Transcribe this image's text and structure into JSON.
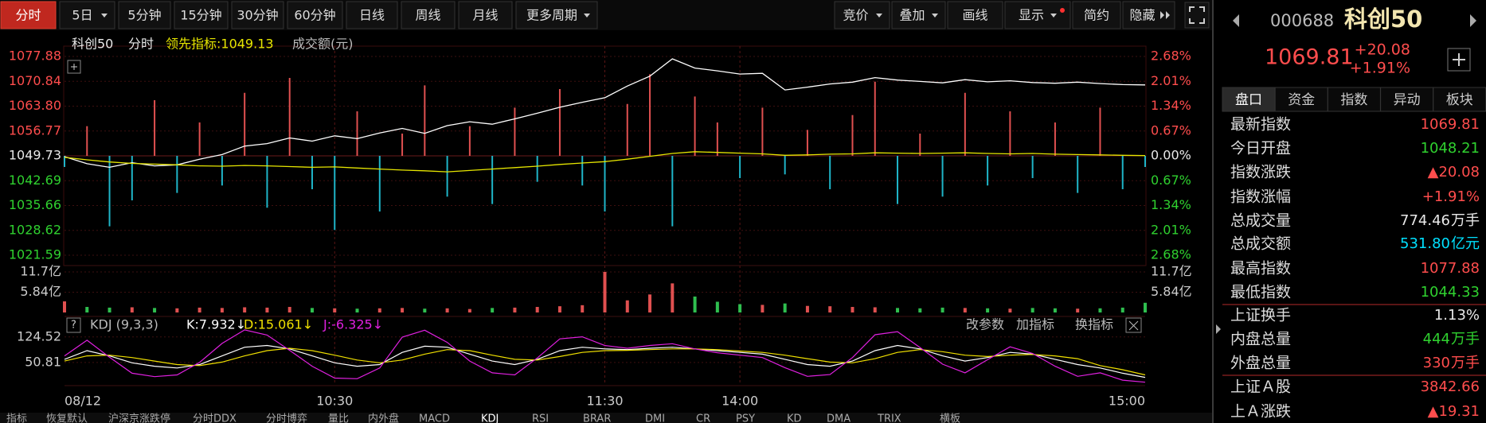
{
  "toolbar": {
    "left": [
      "分时",
      "5日",
      "5分钟",
      "15分钟",
      "30分钟",
      "60分钟",
      "日线",
      "周线",
      "月线",
      "更多周期"
    ],
    "right": [
      "竞价",
      "叠加",
      "画线",
      "显示",
      "简约",
      "隐藏"
    ]
  },
  "chart_data": {
    "type": "line",
    "title": "科创50",
    "mode": "分时",
    "indicator_label": "领先指标:1049.13",
    "volume_label": "成交额(元)",
    "up_color": "#ff4d4d",
    "down_color": "#2fd12f",
    "flat_color": "#e8e8e8",
    "x": [
      0,
      5,
      10,
      15,
      20,
      25,
      30,
      35,
      40,
      45,
      50,
      55,
      60,
      65,
      70,
      75,
      80,
      85,
      90,
      95,
      100,
      105,
      110,
      115,
      120,
      125,
      130,
      135,
      140,
      145,
      150,
      155,
      160,
      165,
      170,
      175,
      180,
      185,
      190,
      195,
      200,
      205,
      210,
      215,
      220,
      225,
      230,
      235,
      240
    ],
    "xlim": [
      0,
      240
    ],
    "xticks": [
      {
        "value": 0,
        "label": "08/12"
      },
      {
        "value": 60,
        "label": "10:30"
      },
      {
        "value": 120,
        "label": "11:30"
      },
      {
        "value": 150,
        "label": "14:00"
      },
      {
        "value": 240,
        "label": "15:00"
      }
    ],
    "ylim": [
      1021.59,
      1077.88
    ],
    "yticks": [
      1077.88,
      1070.84,
      {
        "value": 1063.8,
        "label": "1063.80"
      },
      1056.77,
      1049.73,
      1042.69,
      1035.66,
      1028.62,
      1021.59
    ],
    "y2lim": [
      -2.68,
      2.68
    ],
    "y2ticks": [
      {
        "value": 2.68,
        "label": "2.68%"
      },
      {
        "value": 2.01,
        "label": "2.01%"
      },
      {
        "value": 1.34,
        "label": "1.34%"
      },
      {
        "value": 0.67,
        "label": "0.67%"
      },
      {
        "value": 0,
        "label": "0.00%"
      },
      {
        "value": -0.67,
        "label": "0.67%"
      },
      {
        "value": -1.34,
        "label": "1.34%"
      },
      {
        "value": -2.01,
        "label": "2.01%"
      },
      {
        "value": -2.68,
        "label": "2.68%"
      }
    ],
    "series": [
      {
        "name": "科创50",
        "color": "#ffffff",
        "values": [
          1049.5,
          1047.5,
          1046.5,
          1047.8,
          1046.9,
          1047.2,
          1048.8,
          1050.1,
          1052.5,
          1053.2,
          1054.8,
          1053.9,
          1055.4,
          1054.6,
          1056.2,
          1057.5,
          1056.1,
          1058.3,
          1059.4,
          1058.7,
          1060.2,
          1061.8,
          1063.5,
          1064.9,
          1066.2,
          1069.5,
          1072.3,
          1077.2,
          1074.6,
          1073.8,
          1072.9,
          1073.1,
          1068.4,
          1069.2,
          1070.1,
          1070.6,
          1071.9,
          1071.2,
          1070.8,
          1070.4,
          1071.3,
          1070.7,
          1071.0,
          1070.5,
          1070.3,
          1070.6,
          1070.2,
          1069.9,
          1069.81
        ]
      },
      {
        "color": "#e6e600",
        "values": [
          1049.3,
          1048.6,
          1048.0,
          1047.6,
          1047.4,
          1047.2,
          1046.9,
          1046.8,
          1047.0,
          1046.9,
          1046.7,
          1046.5,
          1046.6,
          1046.3,
          1046.0,
          1045.7,
          1045.5,
          1045.2,
          1045.6,
          1046.0,
          1046.4,
          1046.8,
          1047.3,
          1047.7,
          1048.1,
          1048.8,
          1049.6,
          1050.4,
          1050.9,
          1050.7,
          1050.5,
          1050.3,
          1049.9,
          1050.0,
          1050.2,
          1050.3,
          1050.6,
          1050.5,
          1050.4,
          1050.5,
          1050.6,
          1050.4,
          1050.3,
          1050.4,
          1050.2,
          1050.1,
          1050.0,
          1049.9,
          1049.8
        ]
      }
    ],
    "breadth": {
      "axis": "y2",
      "up_color": "#e05050",
      "down_color": "#1fb5c8",
      "values": [
        -0.3,
        0.8,
        -1.9,
        -1.2,
        1.5,
        -1.0,
        0.9,
        -0.8,
        1.7,
        -1.4,
        2.1,
        -0.9,
        -2.0,
        1.2,
        -1.5,
        0.6,
        1.9,
        -1.1,
        0.8,
        -1.3,
        1.3,
        -0.7,
        1.8,
        -0.8,
        -1.5,
        1.4,
        2.2,
        -1.9,
        1.6,
        0.9,
        -0.6,
        1.3,
        -0.5,
        0.7,
        -0.9,
        1.1,
        2.0,
        -1.3,
        0.6,
        -1.1,
        1.7,
        -0.8,
        1.2,
        -0.6,
        0.9,
        -1.0,
        1.3,
        -0.9,
        -0.3
      ]
    },
    "volume": {
      "ylim": [
        0,
        11.7
      ],
      "yticks": [
        {
          "value": 11.7,
          "label": "11.7亿"
        },
        {
          "value": 5.84,
          "label": "5.84亿"
        }
      ],
      "up_color": "#e05050",
      "down_color": "#2fbf4f",
      "values": [
        3.2,
        1.6,
        1.4,
        1.5,
        1.3,
        1.2,
        1.4,
        1.3,
        1.5,
        1.4,
        1.6,
        1.3,
        1.2,
        1.1,
        1.2,
        1.3,
        1.1,
        1.2,
        1.0,
        1.3,
        1.4,
        1.6,
        1.8,
        2.1,
        11.7,
        3.5,
        5.2,
        8.4,
        4.6,
        3.1,
        2.4,
        2.2,
        2.6,
        1.9,
        1.8,
        1.6,
        1.5,
        1.3,
        1.2,
        1.4,
        1.3,
        1.2,
        1.1,
        1.3,
        1.2,
        1.1,
        1.2,
        1.4,
        2.8
      ]
    },
    "kdj": {
      "help": "?",
      "header": "KDJ (9,3,3)",
      "ylim": [
        -9,
        147
      ],
      "yticks": [
        124.52,
        50.81
      ],
      "buttons": [
        "改参数",
        "加指标",
        "换指标"
      ],
      "series": [
        {
          "name": "K:7.932↓",
          "color": "#ffffff",
          "values": [
            60,
            85,
            70,
            50,
            40,
            35,
            45,
            70,
            95,
            100,
            90,
            70,
            50,
            40,
            45,
            80,
            98,
            95,
            75,
            55,
            45,
            60,
            85,
            95,
            90,
            88,
            92,
            95,
            90,
            85,
            80,
            75,
            60,
            45,
            40,
            55,
            85,
            100,
            90,
            70,
            55,
            65,
            80,
            75,
            60,
            45,
            35,
            20,
            8
          ]
        },
        {
          "name": "D:15.061↓",
          "color": "#f0e000",
          "values": [
            55,
            70,
            72,
            65,
            55,
            45,
            42,
            52,
            70,
            85,
            92,
            85,
            72,
            58,
            50,
            58,
            75,
            88,
            85,
            72,
            60,
            58,
            68,
            80,
            85,
            86,
            88,
            90,
            90,
            88,
            84,
            80,
            72,
            62,
            52,
            50,
            62,
            80,
            88,
            82,
            72,
            68,
            72,
            74,
            70,
            62,
            42,
            30,
            15
          ]
        },
        {
          "name": "J:-6.325↓",
          "color": "#e020e0",
          "values": [
            70,
            115,
            66,
            20,
            10,
            15,
            51,
            106,
            145,
            130,
            86,
            40,
            6,
            4,
            35,
            124,
            144,
            109,
            55,
            21,
            15,
            64,
            119,
            125,
            100,
            92,
            100,
            105,
            90,
            79,
            72,
            65,
            36,
            11,
            16,
            65,
            131,
            140,
            94,
            46,
            21,
            59,
            96,
            77,
            40,
            11,
            21,
            0,
            -6
          ]
        }
      ]
    }
  },
  "panel": {
    "code": "000688",
    "name": "科创50",
    "price": "1069.81",
    "change": "+20.08",
    "change_pct": "+1.91%",
    "tabs": [
      "盘口",
      "资金",
      "指数",
      "异动",
      "板块"
    ],
    "sections": [
      [
        {
          "label": "最新指数",
          "value": "1069.81",
          "color": "#ff4d4d"
        },
        {
          "label": "今日开盘",
          "value": "1048.21",
          "color": "#2fd12f"
        },
        {
          "label": "指数涨跌",
          "value": "▲20.08",
          "color": "#ff4d4d"
        },
        {
          "label": "指数涨幅",
          "value": "+1.91%",
          "color": "#ff4d4d"
        },
        {
          "label": "总成交量",
          "value": "774.46",
          "unit": "万手",
          "color": "#e8e8e8"
        },
        {
          "label": "总成交额",
          "value": "531.80",
          "unit": "亿元",
          "color": "#00e0ff"
        },
        {
          "label": "最高指数",
          "value": "1077.88",
          "color": "#ff4d4d"
        },
        {
          "label": "最低指数",
          "value": "1044.33",
          "color": "#2fd12f"
        }
      ],
      [
        {
          "label": "上证换手",
          "value": "1.13%",
          "color": "#e8e8e8"
        },
        {
          "label": "内盘总量",
          "value": "444",
          "unit": "万手",
          "color": "#2fd12f"
        },
        {
          "label": "外盘总量",
          "value": "330",
          "unit": "万手",
          "color": "#ff4d4d"
        }
      ],
      [
        {
          "label": "上证Ａ股",
          "value": "3842.66",
          "color": "#ff4d4d"
        },
        {
          "label": "上Ａ涨跌",
          "value": "▲19.31",
          "color": "#ff4d4d"
        }
      ]
    ]
  },
  "bottom_tabs": [
    "指标",
    "恢复默认",
    "沪深京涨跌停",
    "分时DDX",
    "分时博弈",
    "量比",
    "内外盘",
    "MACD",
    "KDJ",
    "RSI",
    "BRAR",
    "DMI",
    "CR",
    "PSY",
    "KD",
    "DMA",
    "TRIX",
    "横板"
  ]
}
